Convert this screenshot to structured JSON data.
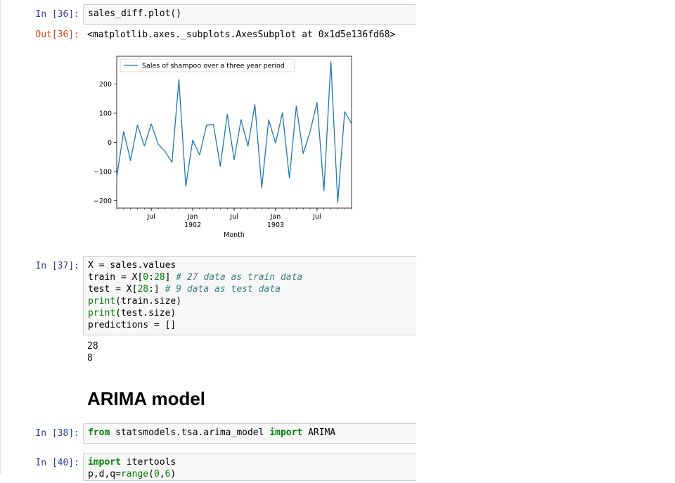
{
  "cells": {
    "c36": {
      "prompt_in": "In [36]:",
      "code": "sales_diff.plot()",
      "prompt_out": "Out[36]:",
      "output": "<matplotlib.axes._subplots.AxesSubplot at 0x1d5e136fd68>"
    },
    "c37": {
      "prompt_in": "In [37]:",
      "code_lines": [
        "X = sales.values",
        "train = X[0:28] # 27 data as train data",
        "test = X[28:] # 9 data as test data",
        "print(train.size)",
        "print(test.size)",
        "predictions = []"
      ],
      "output_lines": [
        "28",
        "8"
      ]
    },
    "markdown": {
      "heading": "ARIMA model"
    },
    "c38": {
      "prompt_in": "In [38]:",
      "code": "from statsmodels.tsa.arima_model import ARIMA"
    },
    "c40": {
      "prompt_in": "In [40]:",
      "code_lines": [
        "import itertools",
        "p,d,q=range(0,6)"
      ]
    }
  },
  "chart_data": {
    "type": "line",
    "title": "",
    "xlabel": "Month",
    "ylabel": "",
    "legend": [
      "Sales of shampoo over a three year period"
    ],
    "legend_placement": "top-left",
    "grid": false,
    "ylim": [
      -225,
      295
    ],
    "yticks": [
      -200,
      -100,
      0,
      100,
      200
    ],
    "yticklabels": [
      "−200",
      "−100",
      "0",
      "100",
      "200"
    ],
    "xticks": [
      {
        "label": "Jul",
        "sub": "",
        "month_index": 5
      },
      {
        "label": "Jan",
        "sub": "1902",
        "month_index": 11
      },
      {
        "label": "Jul",
        "sub": "",
        "month_index": 17
      },
      {
        "label": "Jan",
        "sub": "1903",
        "month_index": 23
      },
      {
        "label": "Jul",
        "sub": "",
        "month_index": 29
      }
    ],
    "x_start": "1901-02",
    "x_end": "1903-12",
    "series": [
      {
        "name": "Sales of shampoo over a three year period",
        "color": "#1f77b4",
        "values": [
          -120,
          38,
          -62,
          60,
          -12,
          63,
          -6,
          -31,
          -68,
          215,
          -150,
          8,
          -43,
          59,
          61,
          -82,
          96,
          -59,
          78,
          -13,
          130,
          -155,
          77,
          -2,
          101,
          -122,
          124,
          -38,
          37,
          137,
          -166,
          277,
          -206,
          105,
          64
        ]
      }
    ]
  }
}
